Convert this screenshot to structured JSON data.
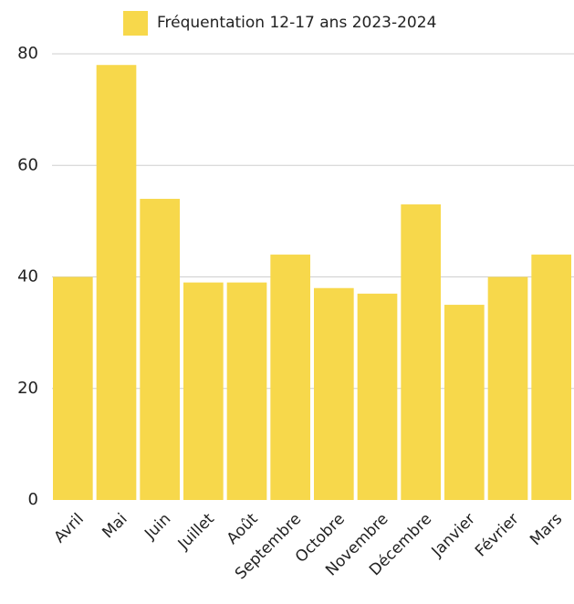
{
  "chart_data": {
    "type": "bar",
    "categories": [
      "Avril",
      "Mai",
      "Juin",
      "Juillet",
      "Août",
      "Septembre",
      "Octobre",
      "Novembre",
      "Décembre",
      "Janvier",
      "Février",
      "Mars"
    ],
    "series": [
      {
        "name": "Fréquentation 12-17 ans 2023-2024",
        "color": "#f7d84b",
        "values": [
          40,
          78,
          54,
          39,
          39,
          44,
          38,
          37,
          53,
          35,
          40,
          44
        ]
      }
    ],
    "ylim": [
      0,
      80
    ],
    "yticks": [
      0,
      20,
      40,
      60,
      80
    ],
    "grid": true,
    "legend": "top"
  }
}
